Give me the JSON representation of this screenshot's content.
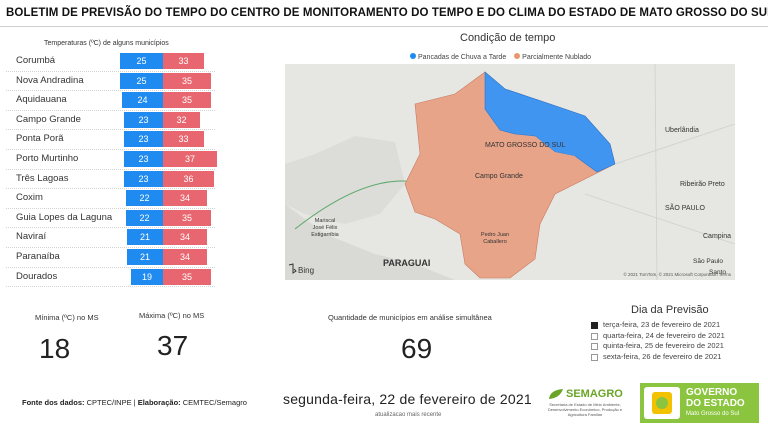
{
  "header": {
    "title": "BOLETIM DE PREVISÃO DO TEMPO DO CENTRO DE MONITORAMENTO DO TEMPO E DO CLIMA DO ESTADO DE MATO GROSSO DO SUL"
  },
  "temperatures": {
    "title": "Temperaturas (ºC) de alguns municípios",
    "rows": [
      {
        "city": "Corumbá",
        "min": 25,
        "max": 33
      },
      {
        "city": "Nova Andradina",
        "min": 25,
        "max": 35
      },
      {
        "city": "Aquidauana",
        "min": 24,
        "max": 35
      },
      {
        "city": "Campo Grande",
        "min": 23,
        "max": 32
      },
      {
        "city": "Ponta Porã",
        "min": 23,
        "max": 33
      },
      {
        "city": "Porto Murtinho",
        "min": 23,
        "max": 37
      },
      {
        "city": "Três Lagoas",
        "min": 23,
        "max": 36
      },
      {
        "city": "Coxim",
        "min": 22,
        "max": 34
      },
      {
        "city": "Guia Lopes da Laguna",
        "min": 22,
        "max": 35
      },
      {
        "city": "Naviraí",
        "min": 21,
        "max": 34
      },
      {
        "city": "Paranaíba",
        "min": 21,
        "max": 34
      },
      {
        "city": "Dourados",
        "min": 19,
        "max": 35
      }
    ],
    "colors": {
      "min": "#1f8bf0",
      "max": "#e8666f"
    }
  },
  "map": {
    "title": "Condição de tempo",
    "legend": [
      {
        "label": "Pancadas de Chuva a Tarde",
        "color": "#1f8bf0"
      },
      {
        "label": "Parcialmente Nublado",
        "color": "#e8966f"
      }
    ],
    "labels": {
      "state": "MATO GROSSO DO SUL",
      "campo_grande": "Campo Grande",
      "uberlandia": "Uberlândia",
      "ribeirao_preto": "Ribeirão Preto",
      "sao_paulo_state": "SÃO PAULO",
      "campinas": "Campina",
      "sao_paulo_city": "São Paulo",
      "santos": "Santo",
      "paraguai": "PARAGUAI",
      "mariscal_1": "Mariscal",
      "mariscal_2": "José Félix",
      "mariscal_3": "Estigarribia",
      "pedro_juan_1": "Pedro Juan",
      "pedro_juan_2": "Caballero",
      "bing": "Bing",
      "copyright": "© 2021 TomTom, © 2021 Microsoft Corporation Terms"
    }
  },
  "kpis": {
    "min_label": "Mínima (ºC) no MS",
    "min_value": "18",
    "max_label": "Máxima (ºC) no MS",
    "max_value": "37",
    "count_label": "Quantidade de municípios em análise simultânea",
    "count_value": "69"
  },
  "forecast_days": {
    "title": "Dia da Previsão",
    "items": [
      {
        "label": "terça-feira, 23 de fevereiro de 2021",
        "checked": true
      },
      {
        "label": "quarta-feira, 24 de fevereiro de 2021",
        "checked": false
      },
      {
        "label": "quinta-feira, 25 de fevereiro de 2021",
        "checked": false
      },
      {
        "label": "sexta-feira, 26 de fevereiro de 2021",
        "checked": false
      }
    ]
  },
  "footer": {
    "source_prefix": "Fonte dos dados:",
    "source_value": " CPTEC/INPE | ",
    "elab_prefix": "Elaboração:",
    "elab_value": " CEMTEC/Semagro",
    "date": "segunda-feira, 22 de fevereiro de 2021",
    "date_sub": "atualizacao mais recente",
    "semagro_name": "SEMAGRO",
    "semagro_sub": "Secretaria de Estado de Meio Ambiente, Desenvolvimento Econômico, Produção e Agricultura Familiar",
    "gov_line1": "GOVERNO",
    "gov_line2": "DO ESTADO",
    "gov_sub": "Mato Grosso do Sul"
  }
}
